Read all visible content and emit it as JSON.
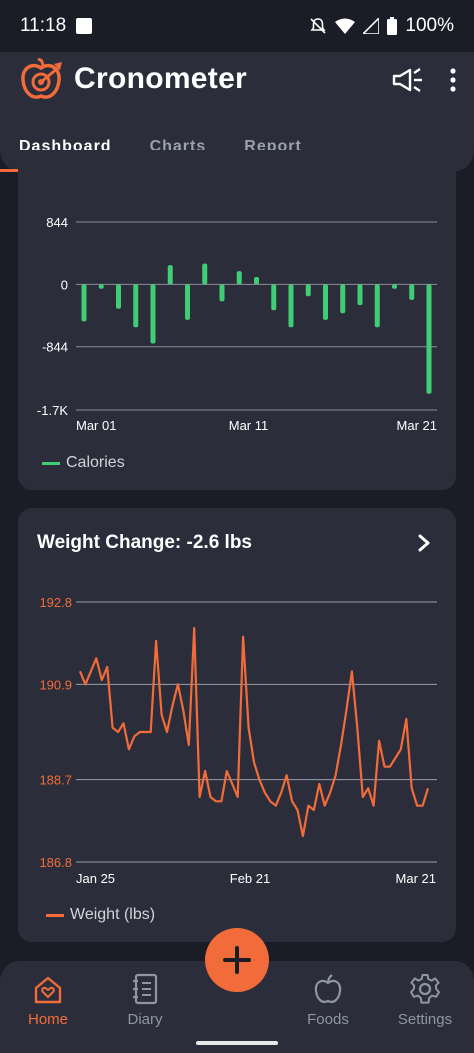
{
  "status": {
    "time": "11:18",
    "battery": "100%"
  },
  "header": {
    "app_title": "Cronometer",
    "logo_icon": "apple-target-icon",
    "announce_icon": "megaphone-icon",
    "menu_icon": "more-vert-icon"
  },
  "tabs": [
    {
      "label": "Dashboard"
    },
    {
      "label": "Charts"
    },
    {
      "label": "Report"
    }
  ],
  "calories_chart": {
    "chart_data": {
      "type": "bar",
      "ylim": [
        -1700,
        844
      ],
      "yticks": [
        "844",
        "0",
        "-844",
        "-1.7K"
      ],
      "ytick_values": [
        844,
        0,
        -844,
        -1700
      ],
      "xticks": [
        "Mar 01",
        "Mar 11",
        "Mar 21"
      ],
      "x": [
        1,
        2,
        3,
        4,
        5,
        6,
        7,
        8,
        9,
        10,
        11,
        12,
        13,
        14,
        15,
        16,
        17,
        18,
        19,
        20,
        21
      ],
      "values": [
        -500,
        -60,
        -330,
        -580,
        -800,
        260,
        -480,
        280,
        -230,
        180,
        100,
        -350,
        -580,
        -160,
        -480,
        -390,
        -280,
        -580,
        -60,
        -210,
        -1480
      ],
      "series": [
        {
          "name": "Calories",
          "color": "#3fce75"
        }
      ]
    }
  },
  "weight_chart": {
    "title": "Weight Change: -2.6 lbs",
    "chart_data": {
      "type": "line",
      "ylim": [
        186.8,
        192.8
      ],
      "yticks": [
        "192.8",
        "190.9",
        "188.7",
        "186.8"
      ],
      "ytick_values": [
        192.8,
        190.9,
        188.7,
        186.8
      ],
      "xticks": [
        "Jan 25",
        "Feb 21",
        "Mar 21"
      ],
      "values": [
        191.2,
        190.9,
        191.2,
        191.5,
        191.0,
        191.3,
        189.9,
        189.8,
        190.0,
        189.4,
        189.7,
        189.8,
        189.8,
        189.8,
        191.9,
        190.2,
        189.8,
        190.4,
        190.9,
        190.3,
        189.5,
        192.2,
        188.3,
        188.9,
        188.3,
        188.2,
        188.2,
        188.9,
        188.6,
        188.3,
        192.0,
        189.9,
        189.1,
        188.7,
        188.4,
        188.2,
        188.1,
        188.4,
        188.8,
        188.2,
        188.0,
        187.4,
        188.1,
        188.0,
        188.6,
        188.1,
        188.4,
        188.8,
        189.5,
        190.3,
        191.2,
        189.9,
        188.3,
        188.5,
        188.1,
        189.6,
        189.0,
        189.0,
        189.2,
        189.4,
        190.1,
        188.5,
        188.1,
        188.1,
        188.5
      ],
      "series": [
        {
          "name": "Weight (lbs)",
          "color": "#f26b3a"
        }
      ]
    }
  },
  "fab": {
    "icon": "plus-icon"
  },
  "bottom_nav": [
    {
      "label": "Home",
      "icon": "home-heart-icon"
    },
    {
      "label": "Diary",
      "icon": "notebook-icon"
    },
    {
      "label": "Foods",
      "icon": "apple-icon"
    },
    {
      "label": "Settings",
      "icon": "gear-icon"
    }
  ],
  "colors": {
    "accent": "#f26b3a",
    "calories_green": "#3fce75",
    "card_bg": "#2b2e3a",
    "page_bg": "#1b1d26"
  }
}
